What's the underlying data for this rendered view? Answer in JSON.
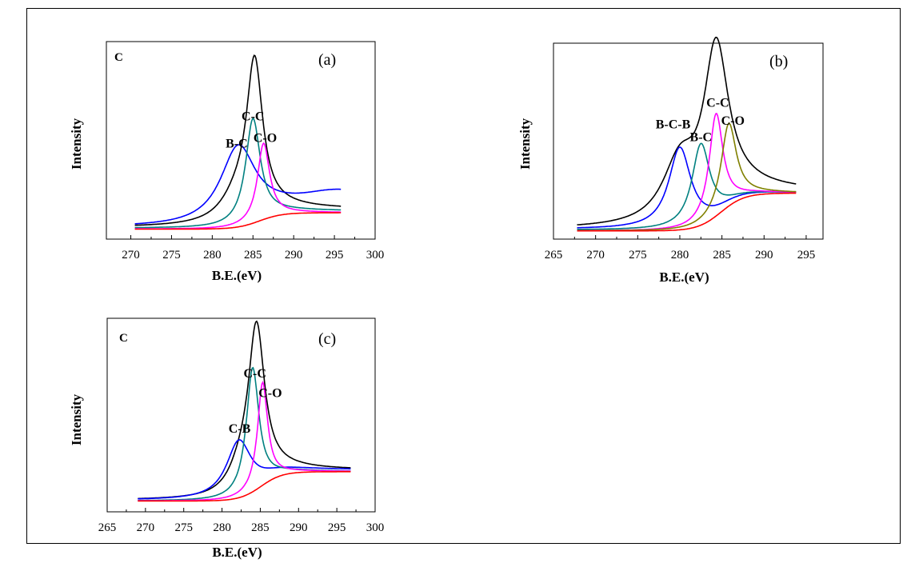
{
  "chart_data": [
    {
      "type": "line",
      "panel_label": "(a)",
      "corner_label": "C",
      "xlabel": "B.E.(eV)",
      "ylabel": "Intensity",
      "xlim": [
        267,
        300
      ],
      "xticks": [
        270,
        275,
        280,
        285,
        290,
        295,
        300
      ],
      "grid": false,
      "x_range": [
        270.5,
        295.8
      ],
      "series": [
        {
          "color": "#000000",
          "peak": {
            "center": 285.2,
            "height": 0.82,
            "width": 1.2
          },
          "base": [
            0.03,
            0.13
          ],
          "shoulder": {
            "center": 283.2,
            "height": 0.14,
            "width": 2.6
          }
        },
        {
          "color": "#0000ff",
          "peak": {
            "center": 283.2,
            "height": 0.44,
            "width": 2.7
          },
          "base": [
            0.03,
            0.13
          ],
          "tail": 0.09
        },
        {
          "color": "#008080",
          "peak": {
            "center": 285.0,
            "height": 0.57,
            "width": 1.1
          },
          "base": [
            0.025,
            0.12
          ]
        },
        {
          "color": "#ff00ff",
          "peak": {
            "center": 286.3,
            "height": 0.42,
            "width": 0.9
          },
          "base": [
            0.02,
            0.11
          ]
        },
        {
          "color": "#ff0000",
          "peak": null,
          "base": [
            0.02,
            0.11
          ]
        }
      ],
      "annotations": [
        {
          "text": "C-C",
          "x": 285.0,
          "y": 0.62
        },
        {
          "text": "B-C",
          "x": 283.0,
          "y": 0.47
        },
        {
          "text": "C-O",
          "x": 286.5,
          "y": 0.5
        }
      ]
    },
    {
      "type": "line",
      "panel_label": "(b)",
      "corner_label": "",
      "xlabel": "B.E.(eV)",
      "ylabel": "Intensity",
      "xlim": [
        265,
        297
      ],
      "xticks": [
        265,
        270,
        275,
        280,
        285,
        290,
        295
      ],
      "grid": false,
      "x_range": [
        267.8,
        293.8
      ],
      "series": [
        {
          "color": "#000000",
          "peak": {
            "center": 284.3,
            "height": 0.9,
            "width": 1.8
          },
          "base": [
            0.02,
            0.23
          ],
          "shoulder": {
            "center": 280.0,
            "height": 0.33,
            "width": 2.5
          }
        },
        {
          "color": "#0000ff",
          "peak": {
            "center": 280.0,
            "height": 0.45,
            "width": 1.6
          },
          "base": [
            0.02,
            0.22
          ]
        },
        {
          "color": "#008080",
          "peak": {
            "center": 282.5,
            "height": 0.45,
            "width": 1.3
          },
          "base": [
            0.015,
            0.22
          ]
        },
        {
          "color": "#ff00ff",
          "peak": {
            "center": 284.3,
            "height": 0.57,
            "width": 1.0
          },
          "base": [
            0.01,
            0.22
          ]
        },
        {
          "color": "#808000",
          "peak": {
            "center": 285.8,
            "height": 0.46,
            "width": 1.1
          },
          "base": [
            0.01,
            0.22
          ]
        },
        {
          "color": "#ff0000",
          "peak": null,
          "base": [
            0.01,
            0.22
          ]
        }
      ],
      "annotations": [
        {
          "text": "C-C",
          "x": 284.5,
          "y": 0.7
        },
        {
          "text": "B-C-B",
          "x": 279.2,
          "y": 0.58
        },
        {
          "text": "B-C",
          "x": 282.5,
          "y": 0.51
        },
        {
          "text": "C-O",
          "x": 286.3,
          "y": 0.6
        }
      ]
    },
    {
      "type": "line",
      "panel_label": "(c)",
      "corner_label": "C",
      "xlabel": "B.E.(eV)",
      "ylabel": "Intensity",
      "xlim": [
        265,
        300
      ],
      "xticks": [
        265,
        270,
        275,
        280,
        285,
        290,
        295,
        300
      ],
      "grid": false,
      "x_range": [
        269.0,
        296.8
      ],
      "series": [
        {
          "color": "#000000",
          "peak": {
            "center": 284.5,
            "height": 0.88,
            "width": 1.3
          },
          "base": [
            0.03,
            0.2
          ],
          "shoulder": {
            "center": 282.5,
            "height": 0.12,
            "width": 2.0
          }
        },
        {
          "color": "#0000ff",
          "peak": {
            "center": 282.2,
            "height": 0.32,
            "width": 2.0
          },
          "base": [
            0.03,
            0.2
          ]
        },
        {
          "color": "#008080",
          "peak": {
            "center": 284.0,
            "height": 0.7,
            "width": 1.0
          },
          "base": [
            0.025,
            0.19
          ]
        },
        {
          "color": "#ff00ff",
          "peak": {
            "center": 285.3,
            "height": 0.58,
            "width": 0.8
          },
          "base": [
            0.025,
            0.19
          ]
        },
        {
          "color": "#ff0000",
          "peak": null,
          "base": [
            0.025,
            0.19
          ]
        }
      ],
      "annotations": [
        {
          "text": "C-C",
          "x": 284.3,
          "y": 0.72
        },
        {
          "text": "C-O",
          "x": 286.3,
          "y": 0.61
        },
        {
          "text": "C-B",
          "x": 282.3,
          "y": 0.41
        }
      ]
    }
  ]
}
